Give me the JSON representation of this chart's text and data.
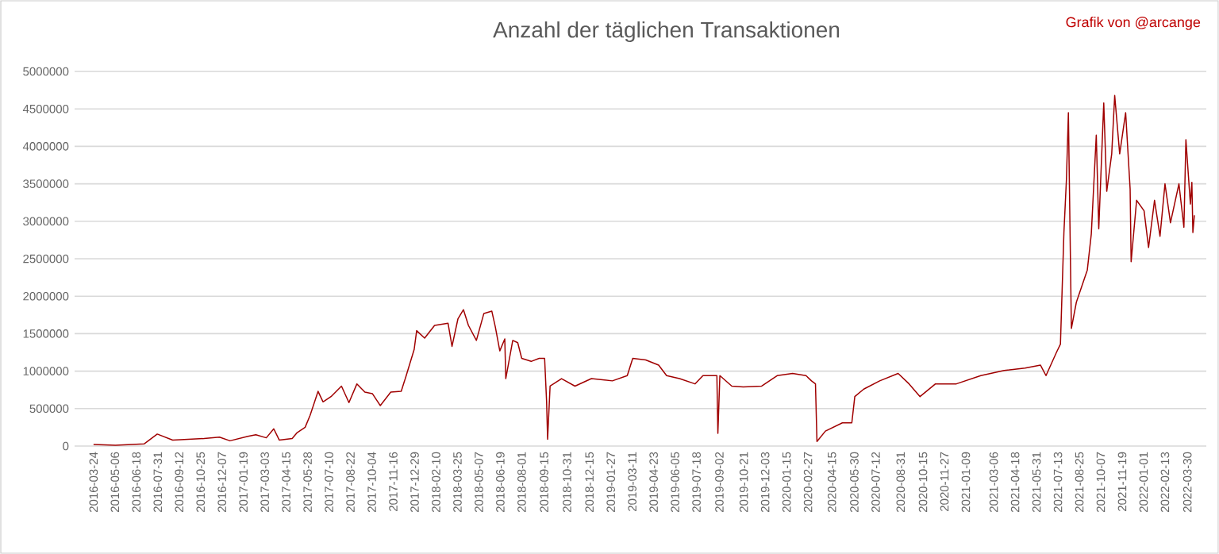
{
  "chart_data": {
    "type": "line",
    "title": "Anzahl der täglichen Transaktionen",
    "annotations": [
      "Grafik von @arcange"
    ],
    "x": [
      "2016-03-24",
      "2016-05-07",
      "2016-07-04",
      "2016-07-30",
      "2016-08-30",
      "2016-11-01",
      "2016-12-02",
      "2016-12-23",
      "2017-01-28",
      "2017-02-13",
      "2017-03-06",
      "2017-03-21",
      "2017-04-01",
      "2017-04-27",
      "2017-05-07",
      "2017-05-23",
      "2017-06-02",
      "2017-06-18",
      "2017-06-28",
      "2017-07-14",
      "2017-08-04",
      "2017-08-19",
      "2017-09-04",
      "2017-09-20",
      "2017-10-05",
      "2017-10-21",
      "2017-11-11",
      "2017-12-02",
      "2017-12-12",
      "2017-12-28",
      "2018-01-02",
      "2018-01-18",
      "2018-02-07",
      "2018-03-06",
      "2018-03-14",
      "2018-03-26",
      "2018-04-06",
      "2018-04-16",
      "2018-05-02",
      "2018-05-17",
      "2018-06-02",
      "2018-06-09",
      "2018-06-18",
      "2018-06-28",
      "2018-06-30",
      "2018-07-14",
      "2018-07-24",
      "2018-08-01",
      "2018-08-20",
      "2018-09-05",
      "2018-09-16",
      "2018-09-20",
      "2018-09-22",
      "2018-09-27",
      "2018-10-20",
      "2018-11-16",
      "2018-12-19",
      "2019-01-30",
      "2019-03-01",
      "2019-03-12",
      "2019-04-07",
      "2019-05-03",
      "2019-05-19",
      "2019-06-14",
      "2019-07-15",
      "2019-07-31",
      "2019-08-28",
      "2019-08-30",
      "2019-09-03",
      "2019-09-27",
      "2019-10-20",
      "2019-11-26",
      "2019-12-27",
      "2020-01-27",
      "2020-02-23",
      "2020-03-05",
      "2020-03-13",
      "2020-03-16",
      "2020-04-02",
      "2020-05-06",
      "2020-05-25",
      "2020-05-31",
      "2020-06-18",
      "2020-07-20",
      "2020-08-26",
      "2020-09-17",
      "2020-10-09",
      "2020-11-09",
      "2020-12-21",
      "2021-02-08",
      "2021-03-27",
      "2021-05-08",
      "2021-06-08",
      "2021-06-19",
      "2021-07-10",
      "2021-07-18",
      "2021-07-25",
      "2021-07-30",
      "2021-08-03",
      "2021-08-09",
      "2021-08-19",
      "2021-09-10",
      "2021-09-18",
      "2021-09-28",
      "2021-10-03",
      "2021-10-13",
      "2021-10-19",
      "2021-10-29",
      "2021-11-04",
      "2021-11-14",
      "2021-11-26",
      "2021-12-05",
      "2021-12-07",
      "2021-12-18",
      "2022-01-02",
      "2022-01-11",
      "2022-01-23",
      "2022-02-03",
      "2022-02-13",
      "2022-02-24",
      "2022-03-13",
      "2022-03-23",
      "2022-03-27",
      "2022-04-05",
      "2022-04-08",
      "2022-04-10",
      "2022-04-13"
    ],
    "series": [
      {
        "color": "#a00000",
        "values": [
          20000,
          10000,
          30000,
          160000,
          80000,
          100000,
          120000,
          70000,
          130000,
          150000,
          110000,
          230000,
          80000,
          100000,
          180000,
          250000,
          410000,
          730000,
          590000,
          660000,
          800000,
          580000,
          830000,
          720000,
          700000,
          540000,
          720000,
          730000,
          940000,
          1290000,
          1540000,
          1440000,
          1610000,
          1640000,
          1330000,
          1700000,
          1820000,
          1610000,
          1410000,
          1770000,
          1800000,
          1590000,
          1270000,
          1430000,
          900000,
          1410000,
          1380000,
          1170000,
          1130000,
          1170000,
          1170000,
          590000,
          90000,
          800000,
          900000,
          800000,
          900000,
          870000,
          940000,
          1170000,
          1150000,
          1080000,
          940000,
          900000,
          830000,
          940000,
          940000,
          170000,
          940000,
          800000,
          790000,
          800000,
          940000,
          970000,
          940000,
          870000,
          830000,
          60000,
          200000,
          310000,
          310000,
          660000,
          760000,
          870000,
          970000,
          830000,
          660000,
          830000,
          830000,
          940000,
          1010000,
          1040000,
          1080000,
          940000,
          1250000,
          1360000,
          2850000,
          3550000,
          4450000,
          1570000,
          1920000,
          2350000,
          2830000,
          4150000,
          2900000,
          4580000,
          3400000,
          3900000,
          4680000,
          3900000,
          4450000,
          3430000,
          2460000,
          3280000,
          3140000,
          2650000,
          3280000,
          2800000,
          3500000,
          2980000,
          3500000,
          2920000,
          4090000,
          3230000,
          3520000,
          2850000,
          3080000
        ]
      }
    ],
    "xlim": [
      "2016-02-15",
      "2022-05-07"
    ],
    "xticks": [
      "2016-03-24",
      "2016-05-06",
      "2016-06-18",
      "2016-07-31",
      "2016-09-12",
      "2016-10-25",
      "2016-12-07",
      "2017-01-19",
      "2017-03-03",
      "2017-04-15",
      "2017-05-28",
      "2017-07-10",
      "2017-08-22",
      "2017-10-04",
      "2017-11-16",
      "2017-12-29",
      "2018-02-10",
      "2018-03-25",
      "2018-05-07",
      "2018-06-19",
      "2018-08-01",
      "2018-09-15",
      "2018-10-31",
      "2018-12-15",
      "2019-01-27",
      "2019-03-11",
      "2019-04-23",
      "2019-06-05",
      "2019-07-18",
      "2019-09-02",
      "2019-10-21",
      "2019-12-03",
      "2020-01-15",
      "2020-02-27",
      "2020-04-15",
      "2020-05-30",
      "2020-07-12",
      "2020-08-31",
      "2020-10-15",
      "2020-11-27",
      "2021-01-09",
      "2021-03-06",
      "2021-04-18",
      "2021-05-31",
      "2021-07-13",
      "2021-08-25",
      "2021-10-07",
      "2021-11-19",
      "2022-01-01",
      "2022-02-13",
      "2022-03-30"
    ],
    "ylim": [
      0,
      5000000
    ],
    "yticks": [
      0,
      500000,
      1000000,
      1500000,
      2000000,
      2500000,
      3000000,
      3500000,
      4000000,
      4500000,
      5000000
    ],
    "grid": "y",
    "marker": "none",
    "line_style": "solid"
  }
}
